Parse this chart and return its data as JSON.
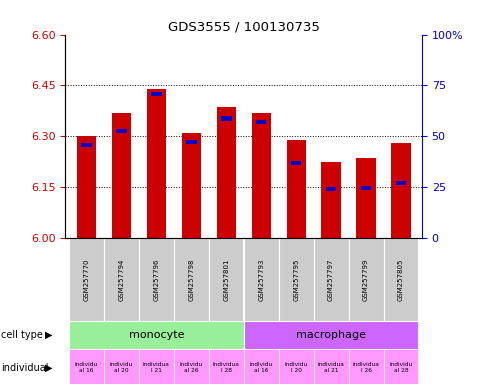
{
  "title": "GDS3555 / 100130735",
  "samples": [
    "GSM257770",
    "GSM257794",
    "GSM257796",
    "GSM257798",
    "GSM257801",
    "GSM257793",
    "GSM257795",
    "GSM257797",
    "GSM257799",
    "GSM257805"
  ],
  "red_values": [
    6.3,
    6.37,
    6.44,
    6.31,
    6.385,
    6.37,
    6.29,
    6.225,
    6.235,
    6.28
  ],
  "blue_values": [
    6.275,
    6.315,
    6.425,
    6.283,
    6.353,
    6.343,
    6.222,
    6.145,
    6.147,
    6.163
  ],
  "ylim_left": [
    6.0,
    6.6
  ],
  "yticks_left": [
    6.0,
    6.15,
    6.3,
    6.45,
    6.6
  ],
  "ylim_right": [
    0,
    100
  ],
  "yticks_right": [
    0,
    25,
    50,
    75,
    100
  ],
  "ytick_labels_right": [
    "0",
    "25",
    "50",
    "75",
    "100%"
  ],
  "bar_color": "#cc0000",
  "blue_color": "#0000cc",
  "cell_type_colors": {
    "monocyte": "#99ee99",
    "macrophage": "#cc66ff"
  },
  "individual_display": [
    "individu\nal 16",
    "individu\nal 20",
    "individua\nl 21",
    "individu\nal 26",
    "individua\nl 28",
    "individu\nal 16",
    "individu\nl 20",
    "individua\nal 21",
    "individua\nl 26",
    "individu\nal 28"
  ],
  "indiv_color": "#ff99ff",
  "bar_width": 0.55,
  "base_value": 6.0,
  "grid_linestyle": ":",
  "grid_color": "#000000",
  "bg_color": "#ffffff",
  "ylabel_color_left": "#cc0000",
  "ylabel_color_right": "#0000cc",
  "sample_bg": "#cccccc"
}
